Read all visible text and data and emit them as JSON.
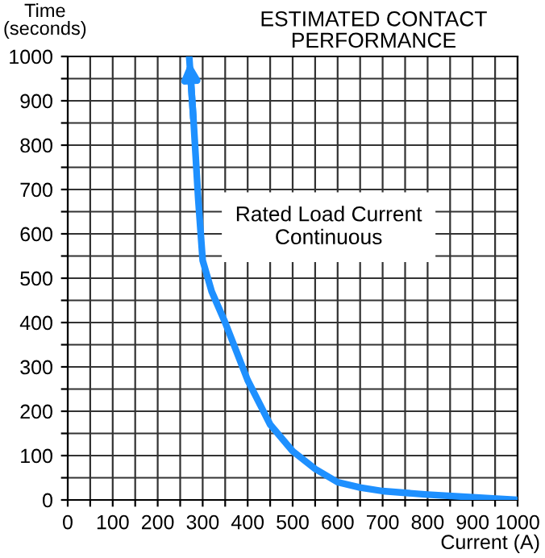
{
  "chart_data": {
    "type": "line",
    "title": "ESTIMATED CONTACT\nPERFORMANCE",
    "xlabel": "Current (A)",
    "ylabel": "Time\n(seconds)",
    "annotations": [
      "Rated Load Current\nContinuous"
    ],
    "series": [
      {
        "color": "#1e90ff",
        "x": [
          270,
          280,
          290,
          300,
          320,
          350,
          400,
          450,
          500,
          550,
          600,
          650,
          700,
          800,
          900,
          1000
        ],
        "values": [
          1000,
          850,
          680,
          540,
          470,
          400,
          270,
          170,
          110,
          70,
          40,
          28,
          20,
          12,
          6,
          0
        ]
      }
    ],
    "xlim": [
      0,
      1000
    ],
    "ylim": [
      0,
      1000
    ],
    "xticks": [
      0,
      {
        "value": 50,
        "label": null
      },
      100,
      {
        "value": 150,
        "label": null
      },
      200,
      {
        "value": 250,
        "label": null
      },
      300,
      {
        "value": 350,
        "label": null
      },
      400,
      {
        "value": 450,
        "label": null
      },
      500,
      {
        "value": 550,
        "label": null
      },
      600,
      {
        "value": 650,
        "label": null
      },
      700,
      {
        "value": 750,
        "label": null
      },
      800,
      {
        "value": 850,
        "label": null
      },
      900,
      {
        "value": 950,
        "label": null
      },
      1000
    ],
    "yticks": [
      0,
      {
        "value": 50,
        "label": null
      },
      100,
      {
        "value": 150,
        "label": null
      },
      200,
      {
        "value": 250,
        "label": null
      },
      300,
      {
        "value": 350,
        "label": null
      },
      400,
      {
        "value": 450,
        "label": null
      },
      500,
      {
        "value": 550,
        "label": null
      },
      600,
      {
        "value": 650,
        "label": null
      },
      700,
      {
        "value": 750,
        "label": null
      },
      800,
      {
        "value": 850,
        "label": null
      },
      900,
      {
        "value": 950,
        "label": null
      },
      1000
    ],
    "grid": true,
    "marker": "none",
    "line_style": "solid"
  }
}
